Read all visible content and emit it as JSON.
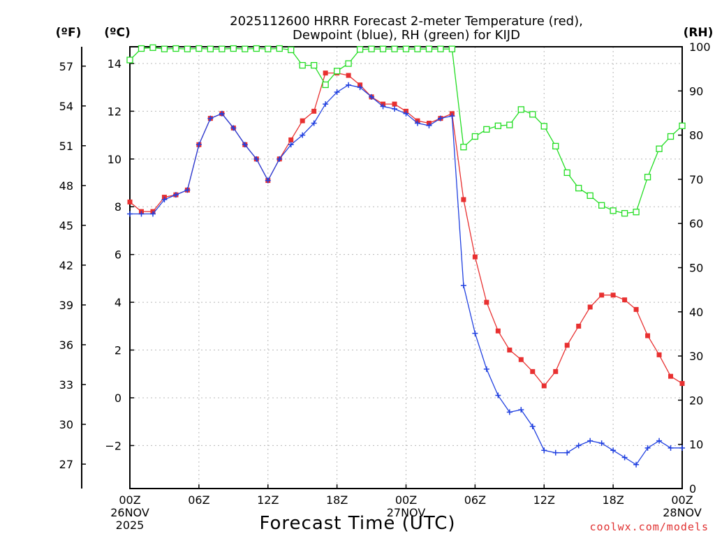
{
  "chart_data": {
    "type": "line",
    "title_line1": "2025112600 HRRR Forecast 2-meter Temperature (red),",
    "title_line2": "Dewpoint (blue), RH (green) for KIJD",
    "unit_f": "(ºF)",
    "unit_c": "(ºC)",
    "unit_rh": "(RH)",
    "xlabel": "Forecast Time (UTC)",
    "credit": "coolwx.com/models",
    "x_ticks": [
      {
        "hour": 0,
        "lines": [
          "00Z",
          "26NOV",
          "2025"
        ]
      },
      {
        "hour": 6,
        "lines": [
          "06Z"
        ]
      },
      {
        "hour": 12,
        "lines": [
          "12Z"
        ]
      },
      {
        "hour": 18,
        "lines": [
          "18Z"
        ]
      },
      {
        "hour": 24,
        "lines": [
          "00Z",
          "27NOV"
        ]
      },
      {
        "hour": 30,
        "lines": [
          "06Z"
        ]
      },
      {
        "hour": 36,
        "lines": [
          "12Z"
        ]
      },
      {
        "hour": 42,
        "lines": [
          "18Z"
        ]
      },
      {
        "hour": 48,
        "lines": [
          "00Z",
          "28NOV"
        ]
      }
    ],
    "xlim": [
      0,
      48
    ],
    "ylim_c": [
      -3.8,
      14.7
    ],
    "ylim_rh": [
      0,
      100
    ],
    "c_ticks": [
      -2,
      0,
      2,
      4,
      6,
      8,
      10,
      12,
      14
    ],
    "f_ticks": [
      27,
      30,
      33,
      36,
      39,
      42,
      45,
      48,
      51,
      54,
      57
    ],
    "rh_ticks": [
      0,
      10,
      20,
      30,
      40,
      50,
      60,
      70,
      80,
      90,
      100
    ],
    "hours": [
      0,
      1,
      2,
      3,
      4,
      5,
      6,
      7,
      8,
      9,
      10,
      11,
      12,
      13,
      14,
      15,
      16,
      17,
      18,
      19,
      20,
      21,
      22,
      23,
      24,
      25,
      26,
      27,
      28,
      29,
      30,
      31,
      32,
      33,
      34,
      35,
      36,
      37,
      38,
      39,
      40,
      41,
      42,
      43,
      44,
      45,
      46,
      47,
      48
    ],
    "series": [
      {
        "name": "Temperature",
        "color": "#e83030",
        "marker": "filled-square",
        "values": [
          8.2,
          7.8,
          7.8,
          8.4,
          8.5,
          8.7,
          10.6,
          11.7,
          11.9,
          11.3,
          10.6,
          10.0,
          9.1,
          10.0,
          10.8,
          11.6,
          12.0,
          13.6,
          13.6,
          13.5,
          13.1,
          12.6,
          12.3,
          12.3,
          12.0,
          11.6,
          11.5,
          11.7,
          11.9,
          8.3,
          5.9,
          4.0,
          2.8,
          2.0,
          1.6,
          1.1,
          0.5,
          1.1,
          2.2,
          3.0,
          3.8,
          4.3,
          4.3,
          4.1,
          3.7,
          2.6,
          1.8,
          0.9,
          0.6
        ]
      },
      {
        "name": "Dewpoint",
        "color": "#2040e0",
        "marker": "plus",
        "values": [
          7.7,
          7.7,
          7.7,
          8.3,
          8.5,
          8.7,
          10.6,
          11.7,
          11.9,
          11.3,
          10.6,
          10.0,
          9.1,
          10.0,
          10.6,
          11.0,
          11.5,
          12.3,
          12.8,
          13.1,
          13.0,
          12.6,
          12.2,
          12.1,
          11.9,
          11.5,
          11.4,
          11.7,
          11.8,
          4.7,
          2.7,
          1.2,
          0.1,
          -0.6,
          -0.5,
          -1.2,
          -2.2,
          -2.3,
          -2.3,
          -2.0,
          -1.8,
          -1.9,
          -2.2,
          -2.5,
          -2.8,
          -2.1,
          -1.8,
          -2.1,
          -2.1
        ]
      },
      {
        "name": "RH",
        "color": "#22dd22",
        "marker": "open-square",
        "values": [
          97,
          99.6,
          99.8,
          99.5,
          99.6,
          99.5,
          99.6,
          99.5,
          99.5,
          99.6,
          99.5,
          99.6,
          99.5,
          99.6,
          99.3,
          95.8,
          95.8,
          91.4,
          94.5,
          96.2,
          99.4,
          99.5,
          99.5,
          99.5,
          99.5,
          99.5,
          99.5,
          99.5,
          99.5,
          77.3,
          79.7,
          81.3,
          82.1,
          82.3,
          85.8,
          84.7,
          82.0,
          77.5,
          71.5,
          68.0,
          66.3,
          64.1,
          62.9,
          62.3,
          62.6,
          70.5,
          76.9,
          79.7,
          82.1
        ]
      }
    ]
  }
}
